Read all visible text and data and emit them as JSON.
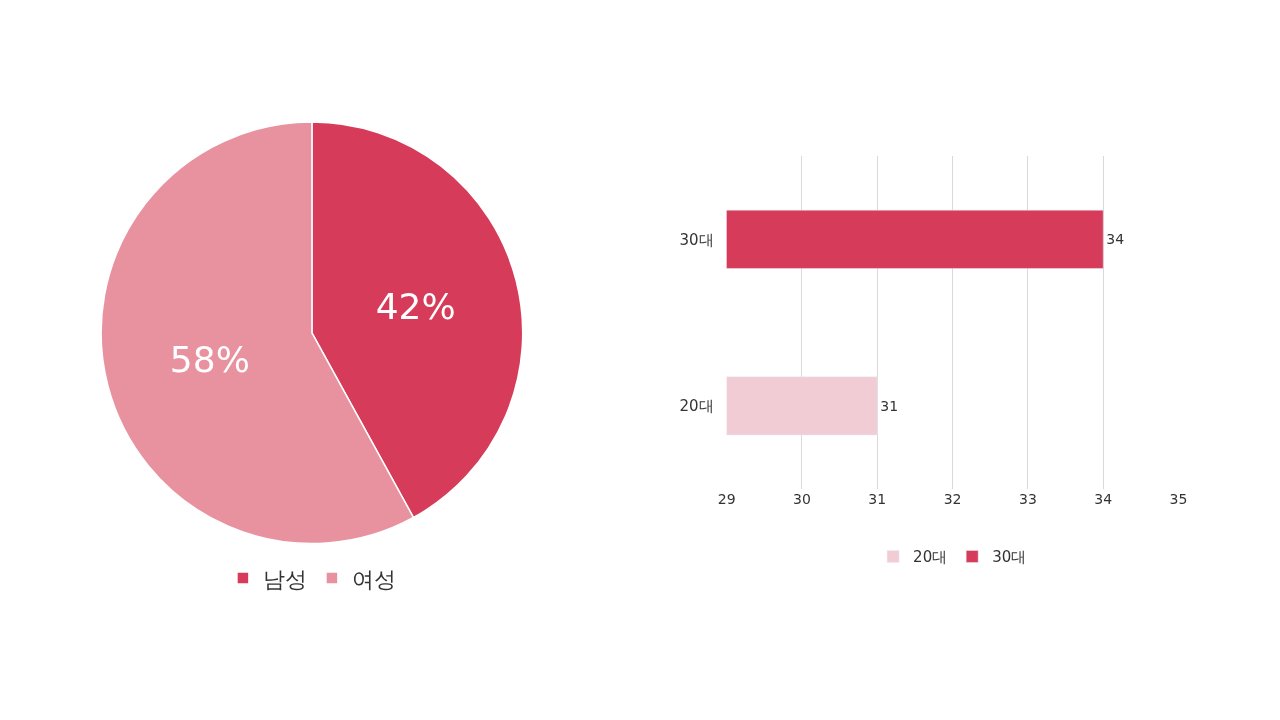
{
  "chart_data": [
    {
      "type": "pie",
      "categories": [
        "남성",
        "여성"
      ],
      "values": [
        42,
        58
      ],
      "colors": [
        "#d63b59",
        "#e8929f"
      ],
      "value_labels": [
        "42%",
        "58%"
      ],
      "legend": "bottom"
    },
    {
      "type": "bar",
      "orientation": "horizontal",
      "categories": [
        "30대",
        "20대"
      ],
      "series": [
        {
          "name": "20대",
          "color": "#f2ccd5",
          "values": [
            null,
            31
          ]
        },
        {
          "name": "30대",
          "color": "#d63b59",
          "values": [
            34,
            null
          ]
        }
      ],
      "xlim": [
        29,
        35
      ],
      "xticks": [
        29,
        30,
        31,
        32,
        33,
        34,
        35
      ],
      "grid": "x",
      "data_labels": true,
      "legend": "bottom"
    }
  ]
}
